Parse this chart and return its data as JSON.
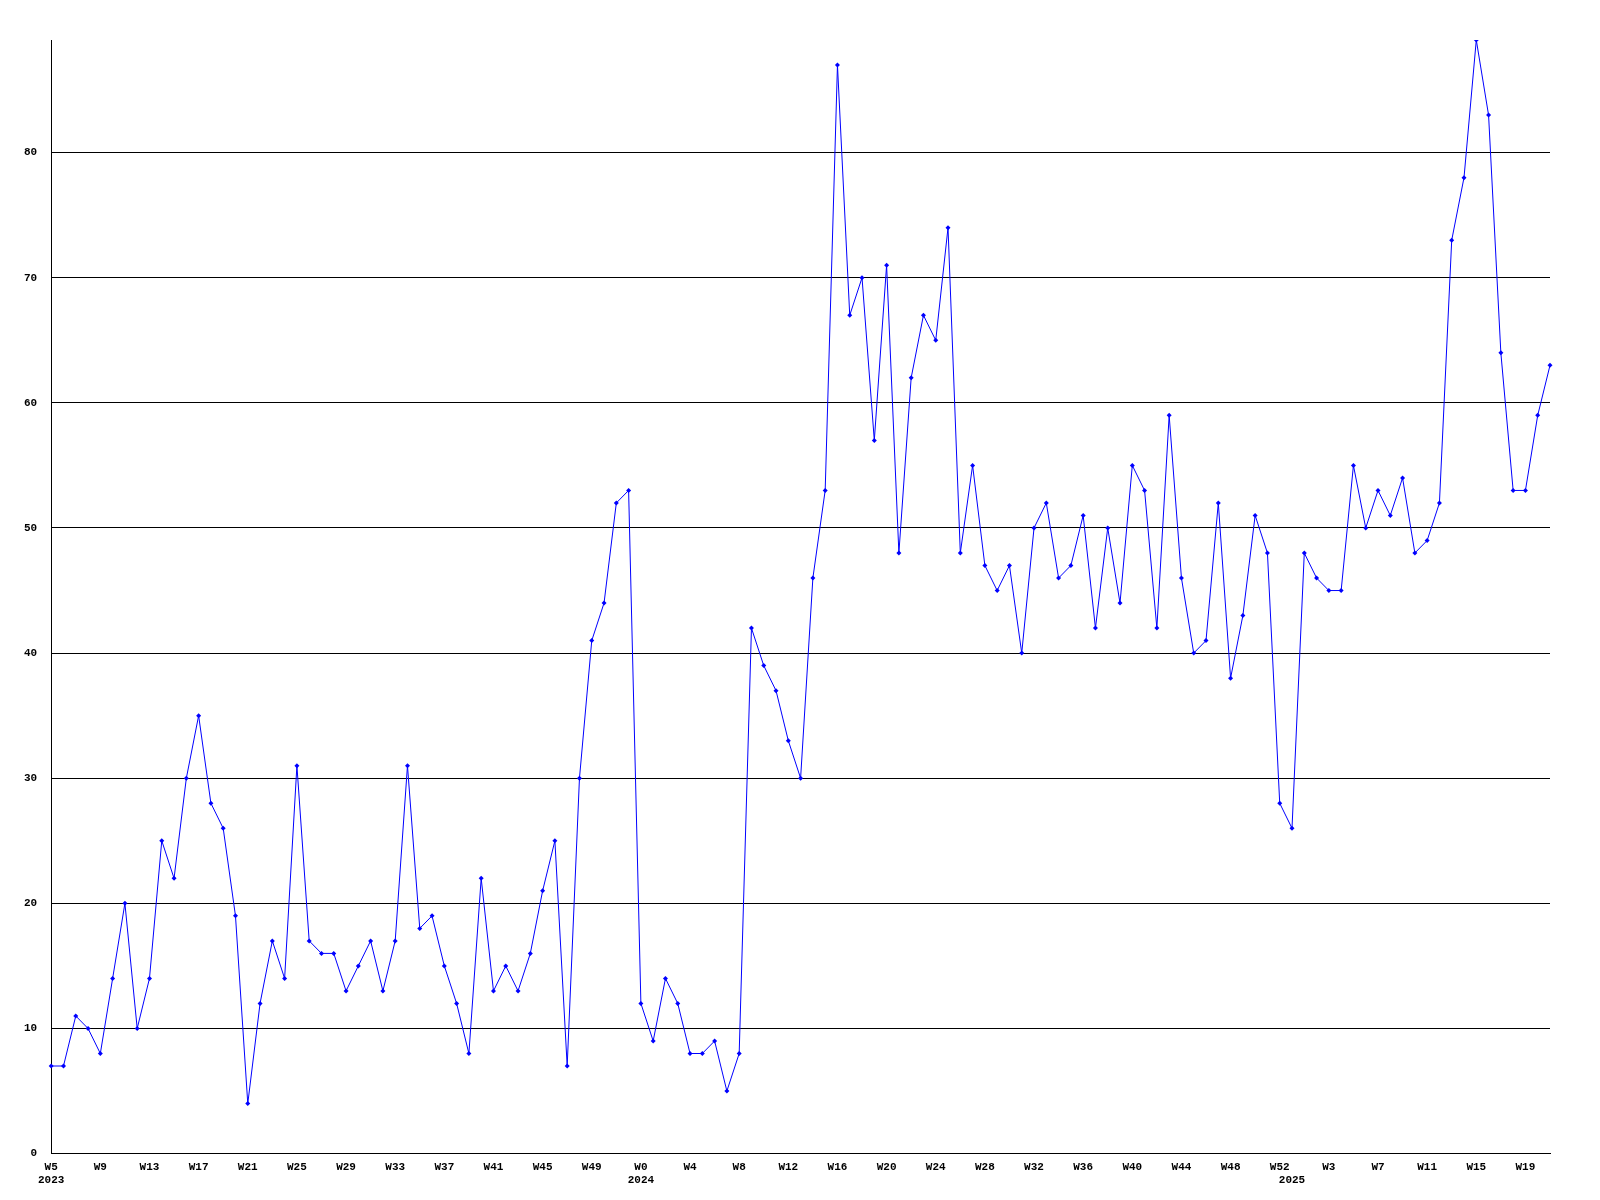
{
  "chart_data": {
    "type": "line",
    "categories": [
      "W5\n2023",
      null,
      null,
      null,
      "W9",
      null,
      null,
      null,
      "W13",
      null,
      null,
      null,
      "W17",
      null,
      null,
      null,
      "W21",
      null,
      null,
      null,
      "W25",
      null,
      null,
      null,
      "W29",
      null,
      null,
      null,
      "W33",
      null,
      null,
      null,
      "W37",
      null,
      null,
      null,
      "W41",
      null,
      null,
      null,
      "W45",
      null,
      null,
      null,
      "W49",
      null,
      null,
      null,
      "W0\n2024",
      null,
      null,
      null,
      "W4",
      null,
      null,
      null,
      "W8",
      null,
      null,
      null,
      "W12",
      null,
      null,
      null,
      "W16",
      null,
      null,
      null,
      "W20",
      null,
      null,
      null,
      "W24",
      null,
      null,
      null,
      "W28",
      null,
      null,
      null,
      "W32",
      null,
      null,
      null,
      "W36",
      null,
      null,
      null,
      "W40",
      null,
      null,
      null,
      "W44",
      null,
      null,
      null,
      "W48",
      null,
      null,
      null,
      "W52",
      "\n2025",
      null,
      null,
      "W3",
      null,
      null,
      null,
      "W7",
      null,
      null,
      null,
      "W11",
      null,
      null,
      null,
      "W15",
      null,
      null,
      null,
      "W19",
      null,
      null
    ],
    "series": [
      {
        "color": "#0000ff",
        "values": [
          7,
          7,
          11,
          10,
          8,
          14,
          20,
          10,
          14,
          25,
          22,
          30,
          35,
          28,
          26,
          19,
          4,
          12,
          17,
          14,
          31,
          17,
          16,
          16,
          13,
          15,
          17,
          13,
          17,
          31,
          18,
          19,
          15,
          12,
          8,
          22,
          13,
          15,
          13,
          16,
          21,
          25,
          7,
          30,
          41,
          44,
          52,
          53,
          12,
          9,
          14,
          12,
          8,
          8,
          9,
          5,
          8,
          42,
          39,
          37,
          33,
          30,
          46,
          53,
          87,
          67,
          70,
          57,
          71,
          48,
          62,
          67,
          65,
          74,
          48,
          55,
          47,
          45,
          47,
          40,
          50,
          52,
          46,
          47,
          51,
          42,
          50,
          44,
          55,
          53,
          42,
          59,
          46,
          40,
          41,
          52,
          38,
          43,
          51,
          48,
          28,
          26,
          48,
          46,
          45,
          45,
          55,
          50,
          53,
          51,
          54,
          48,
          49,
          52,
          73,
          78,
          89,
          83,
          64,
          53,
          53,
          59,
          63
        ]
      }
    ],
    "ylim": [
      0,
      89
    ],
    "yticks": [
      0,
      10,
      20,
      30,
      40,
      50,
      60,
      70,
      80
    ],
    "grid": "y",
    "marker": "diamond",
    "line_style": "solid",
    "legend": false
  }
}
